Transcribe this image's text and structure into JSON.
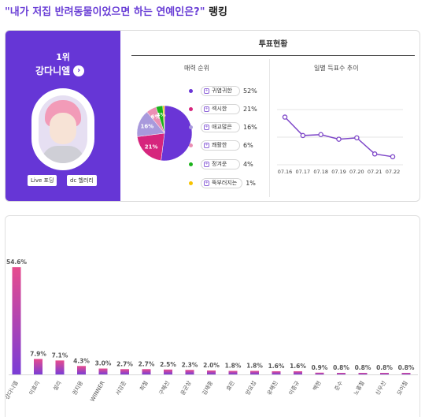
{
  "title": {
    "quote": "\"내가 저집 반려동물이었으면 하는 연예인은?\"",
    "suffix": " 랭킹"
  },
  "winner": {
    "rank": "1위",
    "name": "강다니엘",
    "buttons": [
      "Live 포딩",
      "dc 헬러리"
    ]
  },
  "vote_status": {
    "title": "투표현황",
    "charm_header": "매력 순위",
    "trend_header": "일별 득표수 추이"
  },
  "colors": {
    "accent": "#6636d6",
    "purple": "#6a35d6",
    "magenta": "#d6257d",
    "lavender": "#a899dc",
    "pink": "#eb8fb4",
    "green": "#1bb21b",
    "yellow": "#f7c300",
    "bar_top": "#e64c8e",
    "bar_bottom": "#7a3dd6",
    "line": "#7d46c8"
  },
  "chart_data": [
    {
      "type": "pie",
      "title": "매력 순위",
      "series": [
        {
          "name": "귀염귀한",
          "value": 52,
          "label": "52%",
          "slice_label": "",
          "color": "#6a35d6"
        },
        {
          "name": "섹시한",
          "value": 21,
          "label": "21%",
          "slice_label": "21%",
          "color": "#d6257d"
        },
        {
          "name": "애교많은",
          "value": 16,
          "label": "16%",
          "slice_label": "16%",
          "color": "#a899dc"
        },
        {
          "name": "쾌활한",
          "value": 6,
          "label": "6%",
          "slice_label": "6%",
          "color": "#eb8fb4"
        },
        {
          "name": "정겨운",
          "value": 4,
          "label": "4%",
          "slice_label": "4%",
          "color": "#1bb21b"
        },
        {
          "name": "뚝부러지는",
          "value": 1,
          "label": "1%",
          "slice_label": "",
          "color": "#f7c300"
        }
      ]
    },
    {
      "type": "line",
      "title": "일별 득표수 추이",
      "x": [
        "07.16",
        "07.17",
        "07.18",
        "07.19",
        "07.20",
        "07.21",
        "07.22"
      ],
      "y": [
        100,
        60,
        62,
        52,
        55,
        20,
        14
      ],
      "ylim": [
        0,
        130
      ]
    },
    {
      "type": "bar",
      "categories": [
        "강다니엘",
        "이효리",
        "설리",
        "권지용",
        "WINNER",
        "서강준",
        "희철",
        "구혜선",
        "윤균상",
        "김재중",
        "효린",
        "양요섭",
        "유해진",
        "이종규",
        "백현",
        "준수",
        "노홍철",
        "신우선",
        "모이칠"
      ],
      "values": [
        54.6,
        7.9,
        7.1,
        4.3,
        3.0,
        2.7,
        2.7,
        2.5,
        2.3,
        2.0,
        1.8,
        1.8,
        1.6,
        1.6,
        0.9,
        0.8,
        0.8,
        0.8,
        0.8
      ],
      "labels": [
        "54.6%",
        "7.9%",
        "7.1%",
        "4.3%",
        "3.0%",
        "2.7%",
        "2.7%",
        "2.5%",
        "2.3%",
        "2.0%",
        "1.8%",
        "1.8%",
        "1.6%",
        "1.6%",
        "0.9%",
        "0.8%",
        "0.8%",
        "0.8%",
        "0.8%"
      ],
      "ylim": [
        0,
        60
      ]
    }
  ]
}
